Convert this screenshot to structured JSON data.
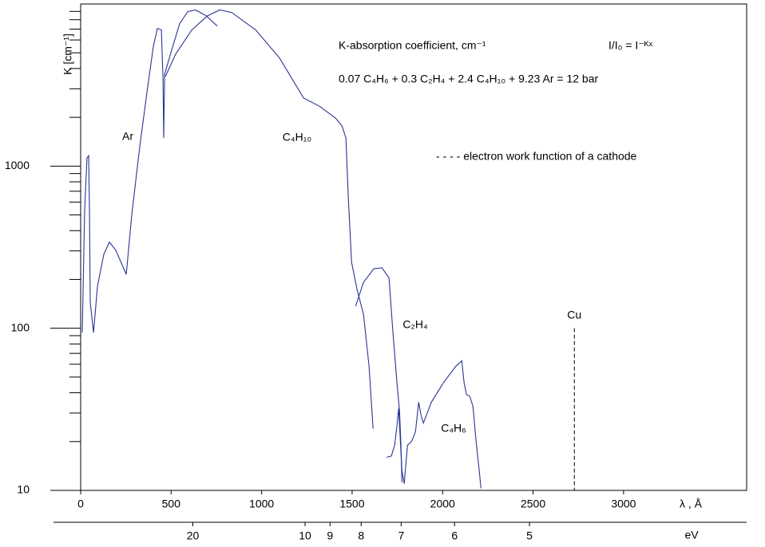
{
  "chart_data": {
    "type": "line",
    "y_label": "K [cm⁻¹]",
    "x_label": "λ , Å",
    "x2_label": "eV",
    "annotations": {
      "title": "K-absorption coefficient, cm⁻¹",
      "law": "I/I₀ = I⁻ᴷˣ",
      "mixture": "0.07 C₄H₆ + 0.3 C₂H₄ + 2.4 C₄H₁₀ + 9.23 Ar = 12 bar",
      "dashed_note": "- - - - electron work function of a cathode"
    },
    "cu_marker": {
      "label": "Cu",
      "x": 2728,
      "top": 100
    },
    "xlim": [
      0,
      3680
    ],
    "xticks": [
      0,
      500,
      1000,
      1500,
      2000,
      2500,
      3000
    ],
    "x2ticks": [
      {
        "value": 620,
        "label": "20"
      },
      {
        "value": 1240,
        "label": "10"
      },
      {
        "value": 1378,
        "label": "9"
      },
      {
        "value": 1550,
        "label": "8"
      },
      {
        "value": 1771,
        "label": "7"
      },
      {
        "value": 2066,
        "label": "6"
      },
      {
        "value": 2480,
        "label": "5"
      }
    ],
    "ylim": [
      10,
      10000
    ],
    "yticks": [
      10,
      100,
      1000
    ],
    "yminor_ticks": [
      20,
      30,
      40,
      50,
      60,
      70,
      80,
      90,
      200,
      300,
      400,
      500,
      600,
      700,
      800,
      900,
      2000,
      3000,
      4000,
      5000,
      6000,
      7000,
      8000,
      9000
    ],
    "log_y": true,
    "grid": false,
    "series": [
      {
        "name": "Ar",
        "color": "#2a3593",
        "x": [
          9,
          22,
          35,
          44,
          49,
          53,
          71,
          93,
          128,
          159,
          194,
          252,
          283,
          327,
          371,
          402,
          424,
          446,
          455,
          459,
          464,
          503,
          547,
          592,
          636,
          693,
          755
        ],
        "values": [
          94,
          535,
          1120,
          1160,
          506,
          145,
          94,
          182,
          286,
          340,
          303,
          215,
          506,
          1330,
          3120,
          5500,
          7070,
          6920,
          3490,
          1490,
          3700,
          5200,
          7570,
          8980,
          9190,
          8470,
          7310
        ]
      },
      {
        "name": "C₄H₁₀",
        "color": "#2a3593",
        "x": [
          468,
          525,
          614,
          702,
          768,
          834,
          967,
          1099,
          1232,
          1320,
          1408,
          1444,
          1466,
          1479,
          1497,
          1528,
          1563,
          1594,
          1616
        ],
        "values": [
          3570,
          4910,
          6920,
          8470,
          9190,
          8870,
          6920,
          4640,
          2630,
          2340,
          1980,
          1770,
          1490,
          634,
          255,
          172,
          122,
          58,
          24
        ]
      },
      {
        "name": "C₂H₄",
        "color": "#2a3593",
        "x": [
          1519,
          1563,
          1620,
          1665,
          1704,
          1726,
          1748,
          1762,
          1770,
          1775
        ],
        "values": [
          137,
          192,
          233,
          236,
          204,
          92,
          46,
          31,
          19,
          11.2
        ]
      },
      {
        "name": "C₄H₆",
        "color": "#2a3593",
        "x": [
          1691,
          1717,
          1735,
          1748,
          1757,
          1766,
          1775,
          1788,
          1806,
          1828,
          1850,
          1868,
          1881,
          1894,
          1938,
          2004,
          2071,
          2106,
          2119,
          2132,
          2150,
          2168,
          2185,
          2203,
          2212
        ],
        "values": [
          16,
          16.3,
          19,
          25,
          32,
          21,
          13.3,
          11,
          19,
          20,
          23,
          35,
          29,
          26,
          35,
          46,
          58,
          63,
          46,
          39,
          38,
          33,
          20,
          13,
          10.3
        ]
      }
    ]
  }
}
